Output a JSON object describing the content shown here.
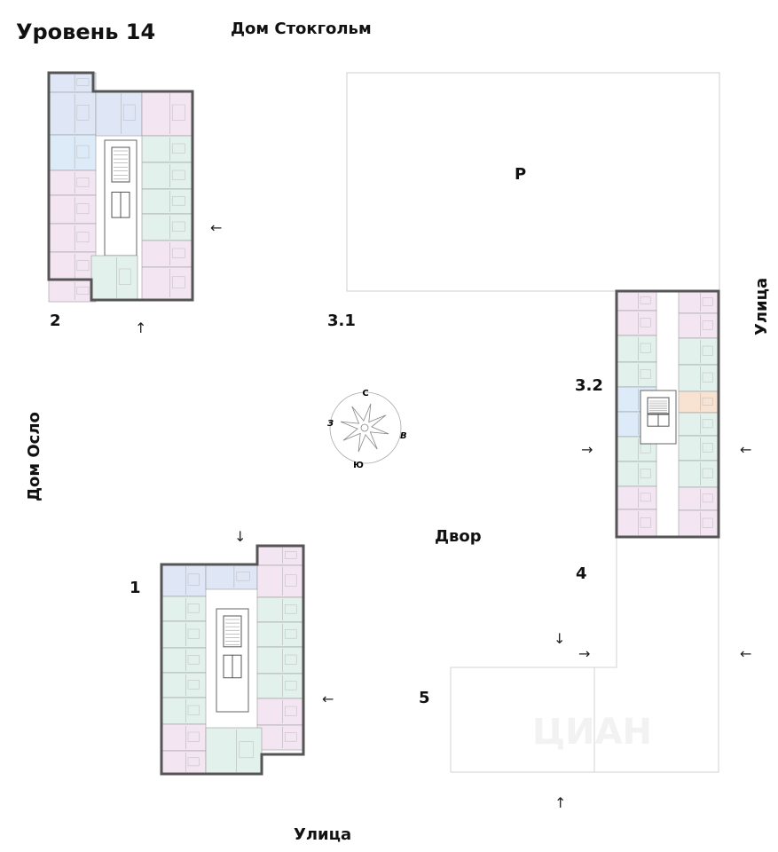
{
  "title": "Уровень 14",
  "neighbors": {
    "top": "Дом Стокгольм",
    "left": "Дом Осло"
  },
  "streets": {
    "right": "Улица",
    "bottom": "Улица"
  },
  "courtyard": "Двор",
  "parking": "P",
  "sections": {
    "s1": "1",
    "s2": "2",
    "s31": "3.1",
    "s32": "3.2",
    "s4": "4",
    "s5": "5"
  },
  "compass": {
    "north": "С",
    "south": "Ю",
    "west": "З",
    "east": "В"
  },
  "entrance_arrows": {
    "left": "←",
    "right": "→",
    "up": "↑",
    "down": "↓"
  },
  "watermark": "ЦИАН",
  "colors": {
    "pink": "#f3e6f2",
    "green": "#e3f1ec",
    "blue": "#dfe6f5",
    "lightblue": "#dcebf7",
    "orange": "#f8e3d2",
    "wall": "#555555",
    "outline": "#cccccc"
  }
}
